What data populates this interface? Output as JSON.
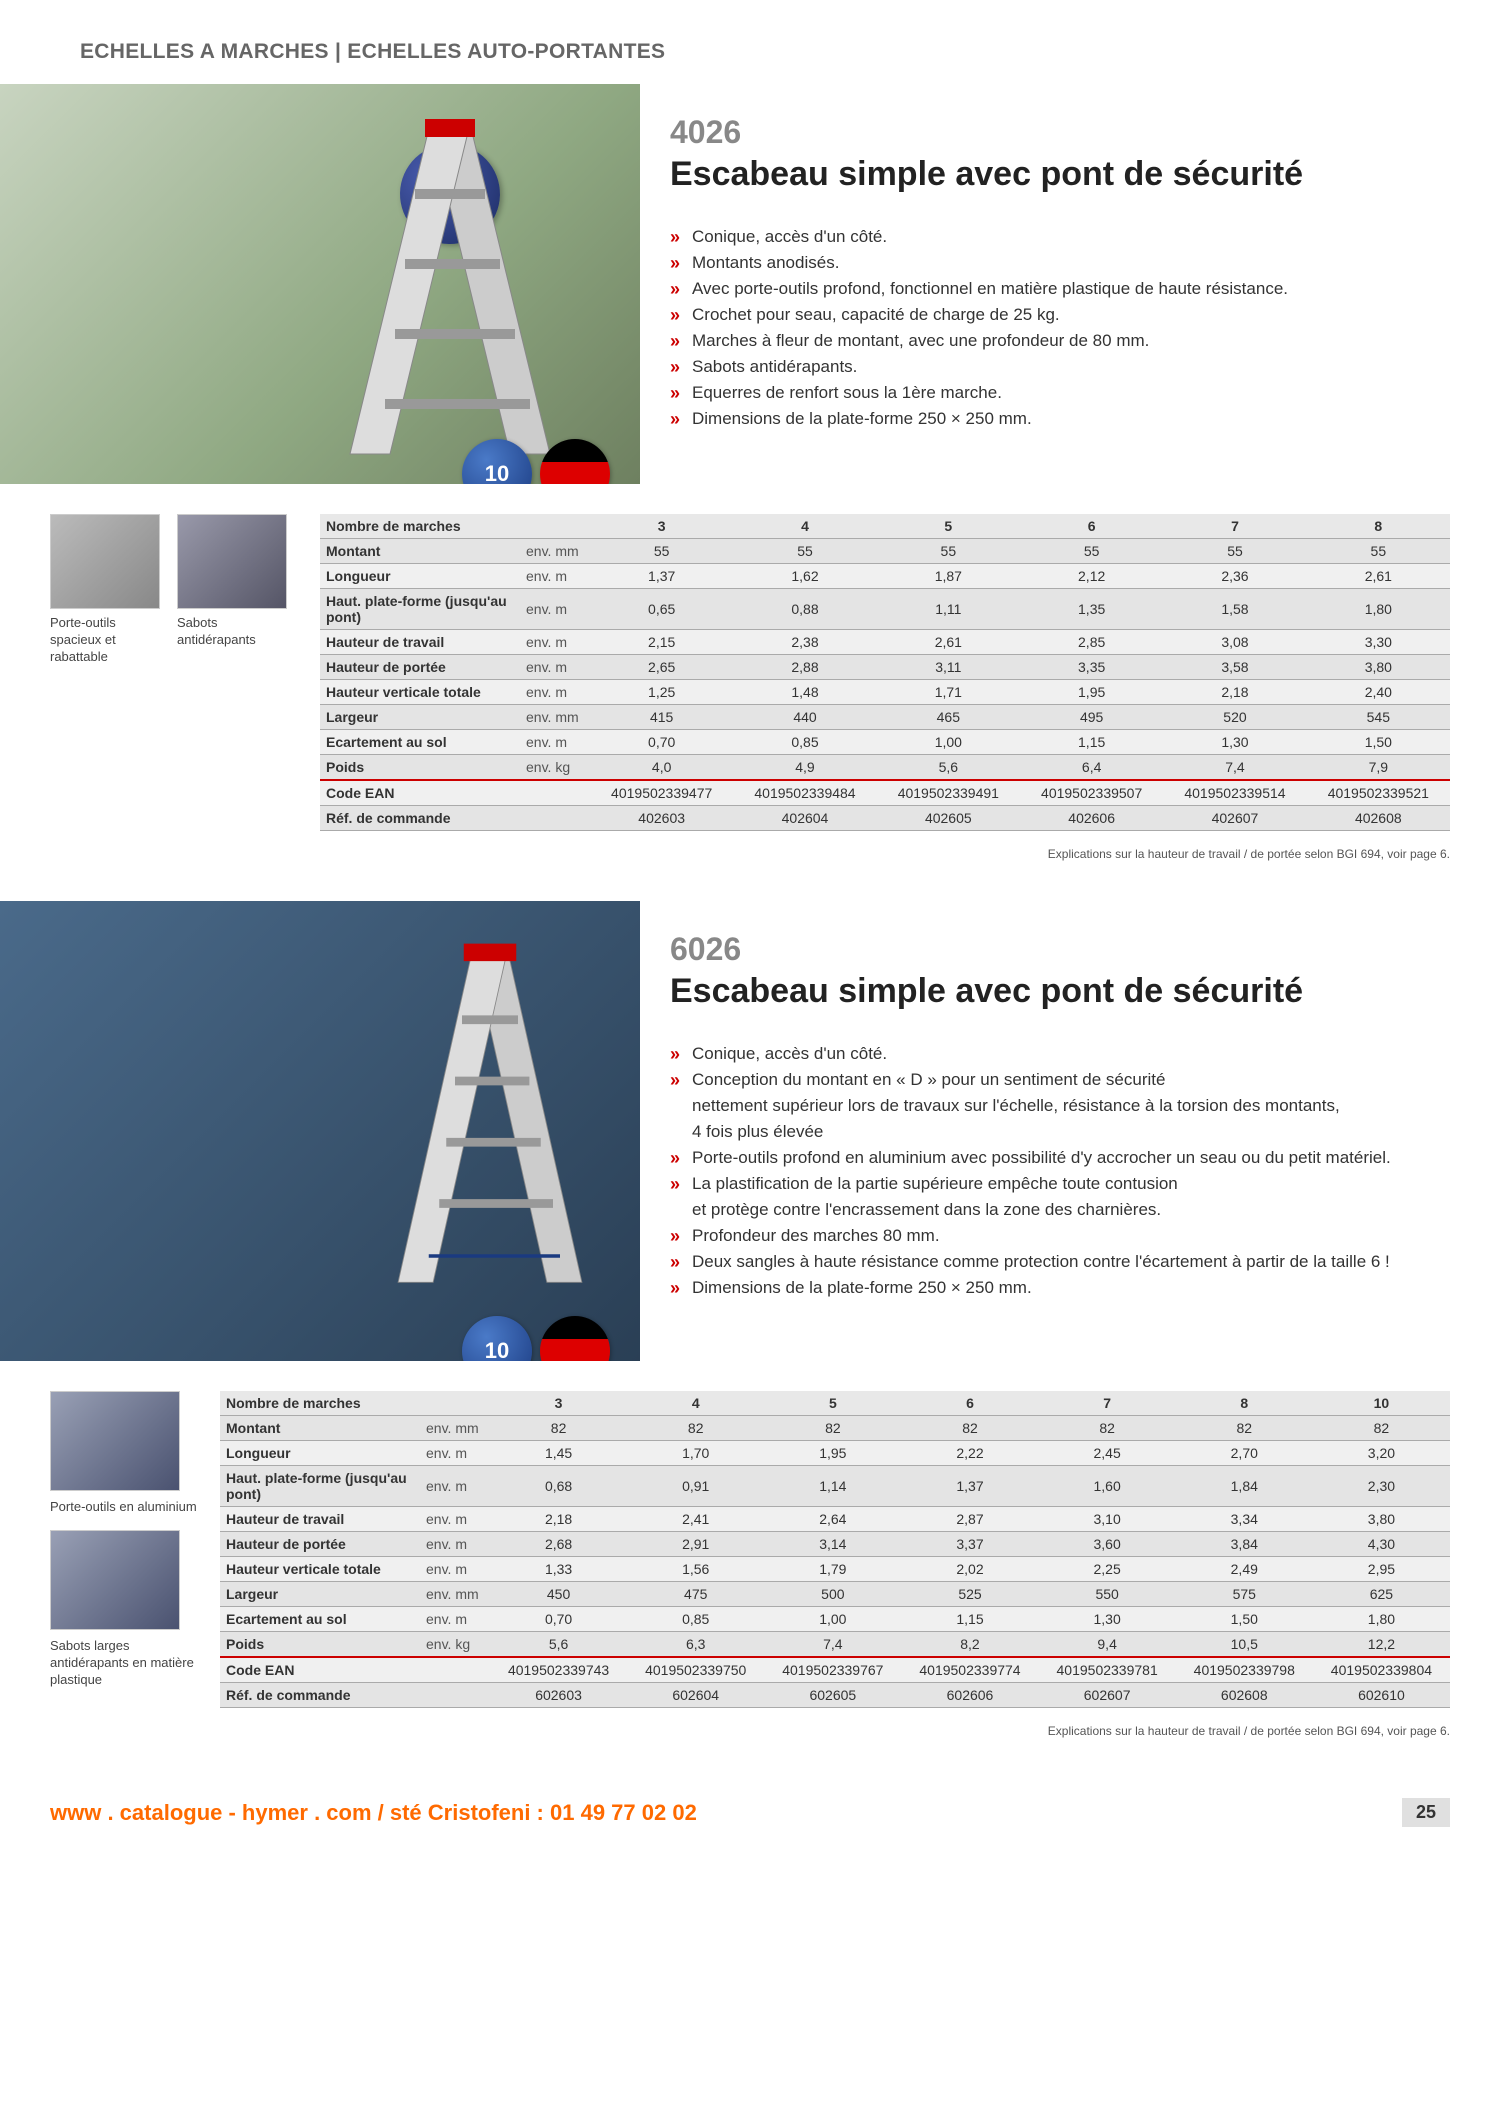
{
  "header": "ECHELLES A MARCHES | ECHELLES AUTO-PORTANTES",
  "p1": {
    "num": "4026",
    "title": "Escabeau simple avec pont de sécurité",
    "badge": "Montants anodisés",
    "features": [
      "Conique, accès d'un côté.",
      "Montants anodisés.",
      "Avec porte-outils profond, fonctionnel en matière plastique de haute résistance.",
      "Crochet pour seau, capacité de charge de 25 kg.",
      "Marches à fleur de montant, avec une profondeur de 80 mm.",
      "Sabots antidérapants.",
      "Equerres de renfort sous la 1ère marche.",
      "Dimensions de la plate-forme 250 × 250 mm."
    ],
    "thumbs": [
      {
        "label": "Porte-outils spacieux et rabattable"
      },
      {
        "label": "Sabots antidérapants"
      }
    ],
    "table": {
      "rows": [
        {
          "label": "Nombre de marches",
          "unit": "",
          "v": [
            "3",
            "4",
            "5",
            "6",
            "7",
            "8"
          ]
        },
        {
          "label": "Montant",
          "unit": "env. mm",
          "v": [
            "55",
            "55",
            "55",
            "55",
            "55",
            "55"
          ]
        },
        {
          "label": "Longueur",
          "unit": "env. m",
          "v": [
            "1,37",
            "1,62",
            "1,87",
            "2,12",
            "2,36",
            "2,61"
          ]
        },
        {
          "label": "Haut. plate-forme (jusqu'au pont)",
          "unit": "env. m",
          "v": [
            "0,65",
            "0,88",
            "1,11",
            "1,35",
            "1,58",
            "1,80"
          ]
        },
        {
          "label": "Hauteur de travail",
          "unit": "env. m",
          "v": [
            "2,15",
            "2,38",
            "2,61",
            "2,85",
            "3,08",
            "3,30"
          ]
        },
        {
          "label": "Hauteur de portée",
          "unit": "env. m",
          "v": [
            "2,65",
            "2,88",
            "3,11",
            "3,35",
            "3,58",
            "3,80"
          ]
        },
        {
          "label": "Hauteur verticale totale",
          "unit": "env. m",
          "v": [
            "1,25",
            "1,48",
            "1,71",
            "1,95",
            "2,18",
            "2,40"
          ]
        },
        {
          "label": "Largeur",
          "unit": "env. mm",
          "v": [
            "415",
            "440",
            "465",
            "495",
            "520",
            "545"
          ]
        },
        {
          "label": "Ecartement au sol",
          "unit": "env. m",
          "v": [
            "0,70",
            "0,85",
            "1,00",
            "1,15",
            "1,30",
            "1,50"
          ]
        },
        {
          "label": "Poids",
          "unit": "env. kg",
          "v": [
            "4,0",
            "4,9",
            "5,6",
            "6,4",
            "7,4",
            "7,9"
          ]
        },
        {
          "label": "Code EAN",
          "unit": "",
          "v": [
            "4019502339477",
            "4019502339484",
            "4019502339491",
            "4019502339507",
            "4019502339514",
            "4019502339521"
          ],
          "sep": true
        },
        {
          "label": "Réf. de commande",
          "unit": "",
          "v": [
            "402603",
            "402604",
            "402605",
            "402606",
            "402607",
            "402608"
          ]
        }
      ]
    }
  },
  "p2": {
    "num": "6026",
    "title": "Escabeau simple avec pont de sécurité",
    "features": [
      {
        "t": "Conique, accès d'un côté."
      },
      {
        "t": "Conception du montant en « D » pour un sentiment de sécurité"
      },
      {
        "t": "nettement supérieur lors de travaux sur l'échelle, résistance à la torsion des montants,",
        "cont": true
      },
      {
        "t": "4 fois plus élevée",
        "cont": true
      },
      {
        "t": "Porte-outils profond en aluminium avec possibilité d'y accrocher un seau ou du petit matériel."
      },
      {
        "t": "La plastification de la partie supérieure empêche toute contusion"
      },
      {
        "t": "et protège contre l'encrassement dans la zone des charnières.",
        "cont": true
      },
      {
        "t": "Profondeur des marches 80 mm."
      },
      {
        "t": "Deux sangles à haute résistance comme protection contre l'écartement à partir de la taille 6 !"
      },
      {
        "t": "Dimensions de la plate-forme 250 × 250 mm."
      }
    ],
    "thumbs": [
      {
        "label": "Porte-outils en aluminium"
      },
      {
        "label": "Sabots larges antidérapants en matière plastique"
      }
    ],
    "table": {
      "rows": [
        {
          "label": "Nombre de marches",
          "unit": "",
          "v": [
            "3",
            "4",
            "5",
            "6",
            "7",
            "8",
            "10"
          ]
        },
        {
          "label": "Montant",
          "unit": "env. mm",
          "v": [
            "82",
            "82",
            "82",
            "82",
            "82",
            "82",
            "82"
          ]
        },
        {
          "label": "Longueur",
          "unit": "env. m",
          "v": [
            "1,45",
            "1,70",
            "1,95",
            "2,22",
            "2,45",
            "2,70",
            "3,20"
          ]
        },
        {
          "label": "Haut. plate-forme (jusqu'au pont)",
          "unit": "env. m",
          "v": [
            "0,68",
            "0,91",
            "1,14",
            "1,37",
            "1,60",
            "1,84",
            "2,30"
          ]
        },
        {
          "label": "Hauteur de travail",
          "unit": "env. m",
          "v": [
            "2,18",
            "2,41",
            "2,64",
            "2,87",
            "3,10",
            "3,34",
            "3,80"
          ]
        },
        {
          "label": "Hauteur de portée",
          "unit": "env. m",
          "v": [
            "2,68",
            "2,91",
            "3,14",
            "3,37",
            "3,60",
            "3,84",
            "4,30"
          ]
        },
        {
          "label": "Hauteur verticale totale",
          "unit": "env. m",
          "v": [
            "1,33",
            "1,56",
            "1,79",
            "2,02",
            "2,25",
            "2,49",
            "2,95"
          ]
        },
        {
          "label": "Largeur",
          "unit": "env. mm",
          "v": [
            "450",
            "475",
            "500",
            "525",
            "550",
            "575",
            "625"
          ]
        },
        {
          "label": "Ecartement au sol",
          "unit": "env. m",
          "v": [
            "0,70",
            "0,85",
            "1,00",
            "1,15",
            "1,30",
            "1,50",
            "1,80"
          ]
        },
        {
          "label": "Poids",
          "unit": "env. kg",
          "v": [
            "5,6",
            "6,3",
            "7,4",
            "8,2",
            "9,4",
            "10,5",
            "12,2"
          ]
        },
        {
          "label": "Code EAN",
          "unit": "",
          "v": [
            "4019502339743",
            "4019502339750",
            "4019502339767",
            "4019502339774",
            "4019502339781",
            "4019502339798",
            "4019502339804"
          ],
          "sep": true
        },
        {
          "label": "Réf. de commande",
          "unit": "",
          "v": [
            "602603",
            "602604",
            "602605",
            "602606",
            "602607",
            "602608",
            "602610"
          ]
        }
      ]
    }
  },
  "footnote": "Explications sur la hauteur de travail / de portée selon BGI 694, voir page 6.",
  "footer_url": "www . catalogue - hymer . com / sté Cristofeni : 01 49 77 02 02",
  "page_num": "25",
  "badge_10": "10",
  "colors": {
    "accent": "#c00",
    "heading": "#666",
    "row_odd": "#f0f0f0",
    "row_even": "#e4e4e4"
  }
}
